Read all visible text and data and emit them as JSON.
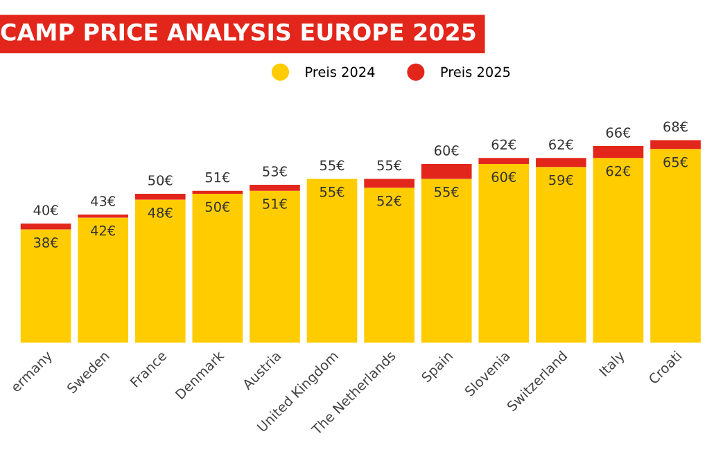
{
  "chart_data": {
    "type": "bar",
    "title": "CAMP PRICE ANALYSIS EUROPE 2025",
    "stacked": true,
    "legend": "top",
    "grid": false,
    "categories": [
      "ermany",
      "Sweden",
      "France",
      "Denmark",
      "Austria",
      "United Kingdom",
      "The Netherlands",
      "Spain",
      "Slovenia",
      "Switzerland",
      "Italy",
      "Croati"
    ],
    "series": [
      {
        "name": "Preis 2024",
        "color": "#ffcc00",
        "values": [
          38,
          42,
          48,
          50,
          51,
          55,
          52,
          55,
          60,
          59,
          62,
          65
        ],
        "value_labels": [
          "38€",
          "42€",
          "48€",
          "50€",
          "51€",
          "55€",
          "52€",
          "55€",
          "60€",
          "59€",
          "62€",
          "65€"
        ]
      },
      {
        "name": "Preis 2025",
        "color": "#e3261b",
        "values": [
          2,
          1,
          2,
          1,
          2,
          0,
          3,
          5,
          2,
          3,
          4,
          3
        ]
      }
    ],
    "totals": [
      "40€",
      "43€",
      "50€",
      "51€",
      "53€",
      "55€",
      "55€",
      "60€",
      "62€",
      "62€",
      "66€",
      "68€"
    ]
  }
}
